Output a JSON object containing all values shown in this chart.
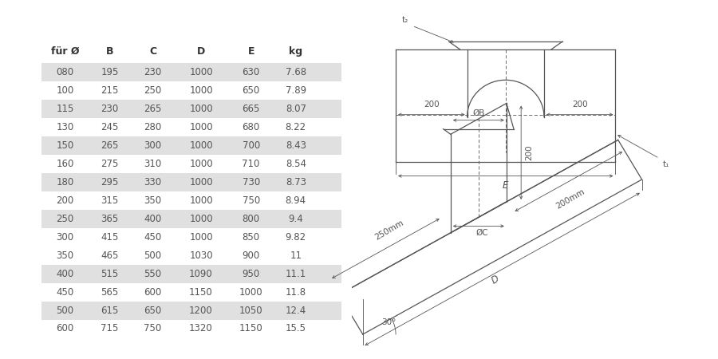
{
  "headers": [
    "für Ø",
    "B",
    "C",
    "D",
    "E",
    "kg"
  ],
  "rows": [
    [
      "080",
      "195",
      "230",
      "1000",
      "630",
      "7.68"
    ],
    [
      "100",
      "215",
      "250",
      "1000",
      "650",
      "7.89"
    ],
    [
      "115",
      "230",
      "265",
      "1000",
      "665",
      "8.07"
    ],
    [
      "130",
      "245",
      "280",
      "1000",
      "680",
      "8.22"
    ],
    [
      "150",
      "265",
      "300",
      "1000",
      "700",
      "8.43"
    ],
    [
      "160",
      "275",
      "310",
      "1000",
      "710",
      "8.54"
    ],
    [
      "180",
      "295",
      "330",
      "1000",
      "730",
      "8.73"
    ],
    [
      "200",
      "315",
      "350",
      "1000",
      "750",
      "8.94"
    ],
    [
      "250",
      "365",
      "400",
      "1000",
      "800",
      "9.4"
    ],
    [
      "300",
      "415",
      "450",
      "1000",
      "850",
      "9.82"
    ],
    [
      "350",
      "465",
      "500",
      "1030",
      "900",
      "11"
    ],
    [
      "400",
      "515",
      "550",
      "1090",
      "950",
      "11.1"
    ],
    [
      "450",
      "565",
      "600",
      "1150",
      "1000",
      "11.8"
    ],
    [
      "500",
      "615",
      "650",
      "1200",
      "1050",
      "12.4"
    ],
    [
      "600",
      "715",
      "750",
      "1320",
      "1150",
      "15.5"
    ]
  ],
  "shaded_rows": [
    0,
    2,
    4,
    6,
    8,
    11,
    13
  ],
  "shade_color": "#e0e0e0",
  "bg_color": "#ffffff",
  "text_color": "#555555",
  "header_color": "#333333",
  "line_color": "#555555"
}
